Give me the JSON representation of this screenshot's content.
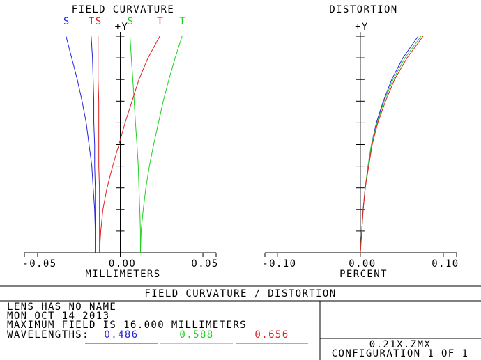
{
  "chart_data": [
    {
      "type": "line",
      "title": "FIELD CURVATURE",
      "xlabel": "MILLIMETERS",
      "ylabel": "+Y",
      "xlim": [
        -0.058,
        0.058
      ],
      "xticks": [
        -0.05,
        {
          "value": 0,
          "label": "0.00"
        },
        0.05
      ],
      "ylim": [
        0,
        1
      ],
      "yticks": [
        0.1,
        0.2,
        0.3,
        0.4,
        0.5,
        0.6,
        0.7,
        0.8,
        0.9,
        1.0
      ],
      "y": [
        0,
        0.1,
        0.2,
        0.3,
        0.4,
        0.5,
        0.6,
        0.7,
        0.8,
        0.9,
        1.0
      ],
      "series": [
        {
          "name": "S",
          "color": "#2424e0",
          "values": [
            -0.0151,
            -0.0151,
            -0.0155,
            -0.0164,
            -0.0172,
            -0.0189,
            -0.0206,
            -0.0231,
            -0.026,
            -0.0294,
            -0.0328
          ]
        },
        {
          "name": "T",
          "color": "#2424e0",
          "values": [
            -0.0151,
            -0.0151,
            -0.0151,
            -0.0151,
            -0.0155,
            -0.0155,
            -0.016,
            -0.016,
            -0.0164,
            -0.0168,
            -0.0176
          ]
        },
        {
          "name": "S",
          "color": "#e02020",
          "values": [
            -0.0126,
            -0.0126,
            -0.0126,
            -0.0126,
            -0.013,
            -0.013,
            -0.013,
            -0.013,
            -0.0134,
            -0.0134,
            -0.0134
          ]
        },
        {
          "name": "S",
          "color": "#20d020",
          "values": [
            0.0122,
            0.0122,
            0.0118,
            0.0113,
            0.0109,
            0.0101,
            0.0092,
            0.0084,
            0.0076,
            0.0067,
            0.0059
          ]
        },
        {
          "name": "T",
          "color": "#e02020",
          "values": [
            -0.0126,
            -0.0118,
            -0.0105,
            -0.008,
            -0.0046,
            -0.0008,
            0.0029,
            0.0071,
            0.0113,
            0.0168,
            0.0239
          ]
        },
        {
          "name": "T",
          "color": "#20d020",
          "values": [
            0.0122,
            0.0126,
            0.0139,
            0.0155,
            0.0176,
            0.0202,
            0.0231,
            0.026,
            0.0294,
            0.0332,
            0.0374
          ]
        }
      ]
    },
    {
      "type": "line",
      "title": "DISTORTION",
      "xlabel": "PERCENT",
      "ylabel": "+Y",
      "xlim": [
        -0.115,
        0.116
      ],
      "xticks": [
        {
          "value": -0.1,
          "label": "-0.10"
        },
        {
          "value": 0,
          "label": "0.00"
        },
        {
          "value": 0.1,
          "label": "0.10"
        }
      ],
      "ylim": [
        0,
        1
      ],
      "yticks": [
        0.1,
        0.2,
        0.3,
        0.4,
        0.5,
        0.6,
        0.7,
        0.8,
        0.9,
        1.0
      ],
      "y": [
        0,
        0.1,
        0.2,
        0.3,
        0.4,
        0.5,
        0.6,
        0.7,
        0.8,
        0.9,
        1.0
      ],
      "series": [
        {
          "color": "#2424e0",
          "values": [
            0,
            0.0017,
            0.0034,
            0.0059,
            0.0092,
            0.0134,
            0.0193,
            0.0277,
            0.0378,
            0.0513,
            0.0697
          ]
        },
        {
          "color": "#20d020",
          "values": [
            0,
            0.0017,
            0.0034,
            0.0059,
            0.0092,
            0.0134,
            0.0202,
            0.0286,
            0.0395,
            0.0538,
            0.0731
          ]
        },
        {
          "color": "#e02020",
          "values": [
            0,
            0.0017,
            0.0034,
            0.0059,
            0.0101,
            0.0143,
            0.021,
            0.0303,
            0.0412,
            0.0563,
            0.0756
          ]
        }
      ]
    }
  ],
  "footer": {
    "title": "FIELD CURVATURE / DISTORTION",
    "lines": [
      "LENS HAS NO NAME",
      "MON OCT 14 2013",
      "MAXIMUM FIELD IS 16.000 MILLIMETERS"
    ],
    "wavelengths_label": "WAVELENGTHS:",
    "wavelengths": [
      {
        "label": "0.486",
        "color": "#2424e0"
      },
      {
        "label": "0.588",
        "color": "#20d020"
      },
      {
        "label": "0.656",
        "color": "#e02020"
      }
    ],
    "file": "0.21X.ZMX",
    "configuration": "CONFIGURATION 1 OF 1"
  }
}
